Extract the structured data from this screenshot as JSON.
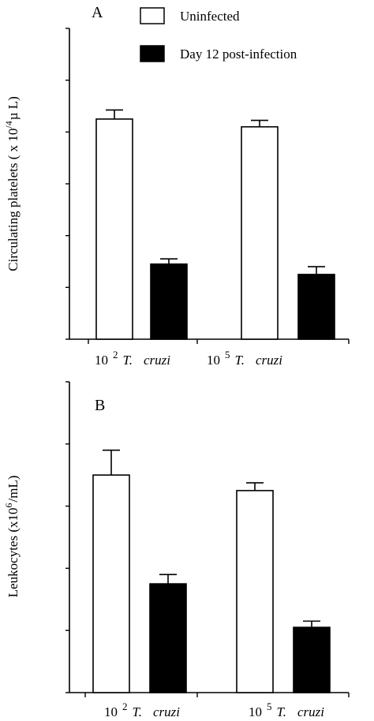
{
  "legend": {
    "entries": [
      {
        "label": "Uninfected",
        "color": "#ffffff"
      },
      {
        "label": "Day 12 post-infection",
        "color": "#000000"
      }
    ],
    "placement": "top"
  },
  "chart_data": [
    {
      "type": "bar",
      "panel_label": "A",
      "ylabel_main": "Circulating platelets ( x 10",
      "ylabel_sup": "/4",
      "ylabel_tail": "µ L)",
      "ylim": [
        0,
        120
      ],
      "yticks": [
        "0",
        "20",
        "40",
        "60",
        "80",
        "100",
        "120"
      ],
      "categories": [
        {
          "prefix": "10",
          "exp": "2",
          "genus": "T.",
          "species": "cruzi"
        },
        {
          "prefix": "10",
          "exp": "5",
          "genus": "T.",
          "species": "cruzi"
        }
      ],
      "series": [
        {
          "name": "Uninfected",
          "color": "#ffffff",
          "values": [
            85,
            82
          ],
          "errors": [
            3.5,
            2.5
          ],
          "marks": [
            "",
            ""
          ]
        },
        {
          "name": "Day 12 post-infection",
          "color": "#000000",
          "values": [
            29,
            25
          ],
          "errors": [
            2,
            3
          ],
          "marks": [
            "*",
            "*"
          ]
        }
      ]
    },
    {
      "type": "bar",
      "panel_label": "B",
      "ylabel_main": "Leukocytes (x10",
      "ylabel_sup": "6",
      "ylabel_tail": "/mL)",
      "ylim": [
        0,
        10
      ],
      "yticks": [
        "0",
        "2",
        "4",
        "6",
        "8",
        "10"
      ],
      "categories": [
        {
          "prefix": "10",
          "exp": "2",
          "genus": "T.",
          "species": "cruzi"
        },
        {
          "prefix": "10",
          "exp": "5",
          "genus": "T.",
          "species": "cruzi"
        }
      ],
      "series": [
        {
          "name": "Uninfected",
          "color": "#ffffff",
          "values": [
            7.0,
            6.5
          ],
          "errors": [
            0.8,
            0.25
          ],
          "marks": [
            "",
            ""
          ]
        },
        {
          "name": "Day 12 post-infection",
          "color": "#000000",
          "values": [
            3.5,
            2.1
          ],
          "errors": [
            0.3,
            0.2
          ],
          "marks": [
            "*",
            "*"
          ]
        }
      ]
    }
  ]
}
